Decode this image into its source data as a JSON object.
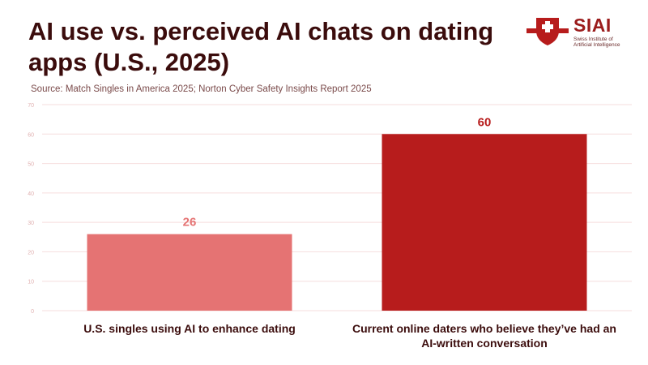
{
  "header": {
    "title": "AI use vs. perceived AI chats on dating apps (U.S., 2025)",
    "source": "Source: Match Singles in America 2025; Norton Cyber Safety Insights Report 2025"
  },
  "logo": {
    "name": "SIAI",
    "line1": "Swiss Institute of",
    "line2": "Artificial Intelligence"
  },
  "colors": {
    "bar1": "#e57373",
    "bar2": "#b71c1c",
    "label1": "#e57373",
    "label2": "#b71c1c"
  },
  "chart_data": {
    "type": "bar",
    "title": "AI use vs. perceived AI chats on dating apps (U.S., 2025)",
    "categories": [
      [
        "U.S. singles using AI to enhance dating"
      ],
      [
        "Current online daters who believe they’ve had an",
        "AI-written conversation"
      ]
    ],
    "values": [
      26,
      60
    ],
    "ylim": [
      0,
      70
    ],
    "yticks": [
      0,
      10,
      20,
      30,
      40,
      50,
      60,
      70
    ],
    "xlabel": "",
    "ylabel": "",
    "grid": true
  }
}
